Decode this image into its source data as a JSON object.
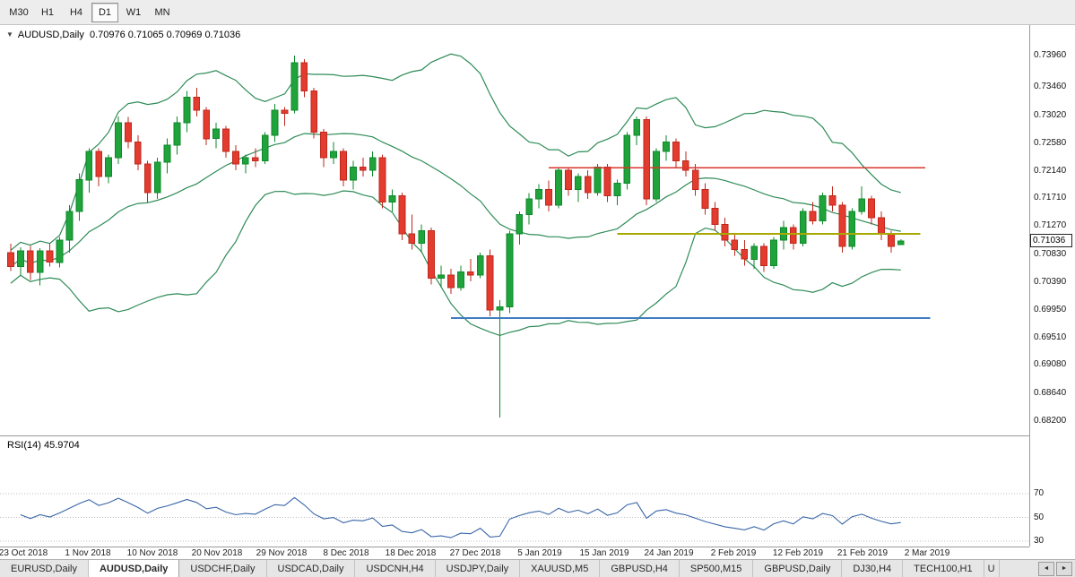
{
  "toolbar": {
    "timeframes": [
      {
        "label": "M30",
        "active": false
      },
      {
        "label": "H1",
        "active": false
      },
      {
        "label": "H4",
        "active": false
      },
      {
        "label": "D1",
        "active": true
      },
      {
        "label": "W1",
        "active": false
      },
      {
        "label": "MN",
        "active": false
      }
    ]
  },
  "chart": {
    "header_icon": "▼",
    "header_text": "AUDUSD,Daily  0.70976 0.71065 0.70969 0.71036",
    "current_price": "0.71036",
    "colors": {
      "up": "#1FA33A",
      "up_stroke": "#0C8A2B",
      "down": "#E33B2E",
      "down_stroke": "#BF271C",
      "bands": "#2E8B57",
      "rsi": "#3A66A8",
      "rsi_level": "#bdbdbd"
    }
  },
  "chart_data": {
    "type": "candlestick",
    "symbol": "AUDUSD",
    "timeframe": "Daily",
    "title": "AUDUSD,Daily",
    "ohlc_current": {
      "open": 0.70976,
      "high": 0.71065,
      "low": 0.70969,
      "close": 0.71036
    },
    "y_axis": {
      "p_max": 0.7444,
      "p_min": 0.6797,
      "ticks": [
        "0.73960",
        "0.73460",
        "0.73020",
        "0.72580",
        "0.72140",
        "0.71710",
        "0.71270",
        "0.70830",
        "0.70390",
        "0.69950",
        "0.69510",
        "0.69080",
        "0.68640",
        "0.68200"
      ]
    },
    "x_labels": [
      "23 Oct 2018",
      "1 Nov 2018",
      "10 Nov 2018",
      "20 Nov 2018",
      "29 Nov 2018",
      "8 Dec 2018",
      "18 Dec 2018",
      "27 Dec 2018",
      "5 Jan 2019",
      "15 Jan 2019",
      "24 Jan 2019",
      "2 Feb 2019",
      "12 Feb 2019",
      "21 Feb 2019",
      "2 Mar 2019"
    ],
    "candles": [
      [
        "2018.10.23",
        0.7085,
        0.7099,
        0.7056,
        0.7063
      ],
      [
        "2018.10.24",
        0.7063,
        0.7094,
        0.705,
        0.7088
      ],
      [
        "2018.10.25",
        0.7088,
        0.7096,
        0.7042,
        0.7054
      ],
      [
        "2018.10.26",
        0.7054,
        0.7092,
        0.70335,
        0.7088
      ],
      [
        "2018.10.29",
        0.7088,
        0.7099,
        0.7063,
        0.707
      ],
      [
        "2018.10.30",
        0.707,
        0.711,
        0.7062,
        0.7105
      ],
      [
        "2018.10.31",
        0.7105,
        0.716,
        0.7085,
        0.715
      ],
      [
        "2018.11.01",
        0.715,
        0.721,
        0.7135,
        0.72
      ],
      [
        "2018.11.02",
        0.72,
        0.725,
        0.718,
        0.7245
      ],
      [
        "2018.11.05",
        0.7245,
        0.725,
        0.719,
        0.7205
      ],
      [
        "2018.11.06",
        0.7205,
        0.724,
        0.7195,
        0.7235
      ],
      [
        "2018.11.07",
        0.7235,
        0.73,
        0.7225,
        0.729
      ],
      [
        "2018.11.08",
        0.729,
        0.7299,
        0.725,
        0.726
      ],
      [
        "2018.11.09",
        0.726,
        0.727,
        0.7215,
        0.7225
      ],
      [
        "2018.11.12",
        0.7225,
        0.723,
        0.7164,
        0.718
      ],
      [
        "2018.11.13",
        0.718,
        0.7235,
        0.717,
        0.7228
      ],
      [
        "2018.11.14",
        0.7228,
        0.7265,
        0.721,
        0.7255
      ],
      [
        "2018.11.15",
        0.7255,
        0.73,
        0.724,
        0.729
      ],
      [
        "2018.11.16",
        0.729,
        0.734,
        0.7275,
        0.733
      ],
      [
        "2018.11.19",
        0.733,
        0.7345,
        0.73,
        0.731
      ],
      [
        "2018.11.20",
        0.731,
        0.7315,
        0.7255,
        0.7265
      ],
      [
        "2018.11.21",
        0.7265,
        0.729,
        0.725,
        0.728
      ],
      [
        "2018.11.22",
        0.728,
        0.7285,
        0.7235,
        0.7245
      ],
      [
        "2018.11.23",
        0.7245,
        0.7255,
        0.7215,
        0.7225
      ],
      [
        "2018.11.26",
        0.7225,
        0.724,
        0.721,
        0.7235
      ],
      [
        "2018.11.27",
        0.7235,
        0.725,
        0.722,
        0.723
      ],
      [
        "2018.11.28",
        0.723,
        0.7275,
        0.7225,
        0.727
      ],
      [
        "2018.11.29",
        0.727,
        0.732,
        0.726,
        0.731
      ],
      [
        "2018.11.30",
        0.731,
        0.7315,
        0.7285,
        0.7305
      ],
      [
        "2018.12.03",
        0.731,
        0.7396,
        0.7305,
        0.7385
      ],
      [
        "2018.12.04",
        0.7385,
        0.739,
        0.733,
        0.734
      ],
      [
        "2018.12.05",
        0.734,
        0.7345,
        0.7265,
        0.7275
      ],
      [
        "2018.12.06",
        0.7275,
        0.728,
        0.722,
        0.7235
      ],
      [
        "2018.12.07",
        0.7235,
        0.726,
        0.7225,
        0.7245
      ],
      [
        "2018.12.10",
        0.7245,
        0.725,
        0.719,
        0.72
      ],
      [
        "2018.12.11",
        0.72,
        0.723,
        0.7185,
        0.722
      ],
      [
        "2018.12.12",
        0.722,
        0.7235,
        0.7205,
        0.7215
      ],
      [
        "2018.12.13",
        0.7215,
        0.7245,
        0.7205,
        0.7235
      ],
      [
        "2018.12.14",
        0.7235,
        0.724,
        0.7155,
        0.7165
      ],
      [
        "2018.12.17",
        0.7165,
        0.7185,
        0.715,
        0.7175
      ],
      [
        "2018.12.18",
        0.7175,
        0.718,
        0.7105,
        0.7115
      ],
      [
        "2018.12.19",
        0.7115,
        0.7145,
        0.709,
        0.71
      ],
      [
        "2018.12.20",
        0.71,
        0.713,
        0.7085,
        0.712
      ],
      [
        "2018.12.21",
        0.712,
        0.7125,
        0.7035,
        0.7045
      ],
      [
        "2018.12.24",
        0.7045,
        0.7065,
        0.703,
        0.705
      ],
      [
        "2018.12.26",
        0.705,
        0.706,
        0.702,
        0.703
      ],
      [
        "2018.12.27",
        0.703,
        0.7065,
        0.7025,
        0.7055
      ],
      [
        "2018.12.28",
        0.7055,
        0.7075,
        0.704,
        0.705
      ],
      [
        "2018.12.31",
        0.705,
        0.7085,
        0.7045,
        0.708
      ],
      [
        "2019.01.02",
        0.708,
        0.709,
        0.6985,
        0.6995
      ],
      [
        "2019.01.03",
        0.6995,
        0.701,
        0.6825,
        0.7
      ],
      [
        "2019.01.04",
        0.7,
        0.712,
        0.699,
        0.7115
      ],
      [
        "2019.01.07",
        0.7115,
        0.715,
        0.7098,
        0.7145
      ],
      [
        "2019.01.08",
        0.7145,
        0.7179,
        0.713,
        0.717
      ],
      [
        "2019.01.09",
        0.717,
        0.7193,
        0.7155,
        0.7185
      ],
      [
        "2019.01.10",
        0.7185,
        0.7199,
        0.715,
        0.716
      ],
      [
        "2019.01.11",
        0.716,
        0.722,
        0.7155,
        0.7215
      ],
      [
        "2019.01.14",
        0.7215,
        0.722,
        0.7175,
        0.7185
      ],
      [
        "2019.01.15",
        0.7185,
        0.721,
        0.7165,
        0.7205
      ],
      [
        "2019.01.16",
        0.7205,
        0.7215,
        0.717,
        0.718
      ],
      [
        "2019.01.17",
        0.718,
        0.7225,
        0.7175,
        0.722
      ],
      [
        "2019.01.18",
        0.722,
        0.7225,
        0.7165,
        0.7175
      ],
      [
        "2019.01.21",
        0.7175,
        0.72,
        0.716,
        0.7195
      ],
      [
        "2019.01.22",
        0.7195,
        0.7275,
        0.7185,
        0.727
      ],
      [
        "2019.01.23",
        0.727,
        0.73,
        0.7255,
        0.7295
      ],
      [
        "2019.01.24",
        0.7295,
        0.73,
        0.716,
        0.717
      ],
      [
        "2019.01.25",
        0.717,
        0.725,
        0.7165,
        0.7245
      ],
      [
        "2019.01.28",
        0.7245,
        0.727,
        0.723,
        0.726
      ],
      [
        "2019.01.29",
        0.726,
        0.7265,
        0.722,
        0.723
      ],
      [
        "2019.01.30",
        0.723,
        0.7245,
        0.7205,
        0.7215
      ],
      [
        "2019.01.31",
        0.7215,
        0.7225,
        0.7175,
        0.7185
      ],
      [
        "2019.02.01",
        0.7185,
        0.7195,
        0.7145,
        0.7155
      ],
      [
        "2019.02.04",
        0.7155,
        0.7165,
        0.712,
        0.713
      ],
      [
        "2019.02.05",
        0.713,
        0.714,
        0.7095,
        0.7105
      ],
      [
        "2019.02.06",
        0.7105,
        0.7115,
        0.708,
        0.709
      ],
      [
        "2019.02.07",
        0.709,
        0.7105,
        0.7065,
        0.7075
      ],
      [
        "2019.02.08",
        0.7075,
        0.71,
        0.706,
        0.7095
      ],
      [
        "2019.02.11",
        0.7095,
        0.71,
        0.7055,
        0.7065
      ],
      [
        "2019.02.12",
        0.7065,
        0.711,
        0.706,
        0.7105
      ],
      [
        "2019.02.13",
        0.7105,
        0.7135,
        0.709,
        0.7125
      ],
      [
        "2019.02.14",
        0.7125,
        0.713,
        0.709,
        0.71
      ],
      [
        "2019.02.15",
        0.71,
        0.7155,
        0.7095,
        0.715
      ],
      [
        "2019.02.18",
        0.715,
        0.7165,
        0.713,
        0.7135
      ],
      [
        "2019.02.19",
        0.7135,
        0.718,
        0.713,
        0.7175
      ],
      [
        "2019.02.20",
        0.7175,
        0.719,
        0.715,
        0.716
      ],
      [
        "2019.02.21",
        0.716,
        0.7165,
        0.7085,
        0.7095
      ],
      [
        "2019.02.22",
        0.7095,
        0.7155,
        0.709,
        0.715
      ],
      [
        "2019.02.25",
        0.715,
        0.719,
        0.7145,
        0.717
      ],
      [
        "2019.02.26",
        0.717,
        0.7175,
        0.713,
        0.714
      ],
      [
        "2019.02.27",
        0.714,
        0.715,
        0.7105,
        0.7115
      ],
      [
        "2019.02.28",
        0.7115,
        0.712,
        0.7085,
        0.7095
      ],
      [
        "2019.03.01",
        0.70976,
        0.71065,
        0.70969,
        0.71036
      ]
    ],
    "indicators": {
      "bollinger": {
        "period": 20,
        "deviation": 2
      },
      "rsi": {
        "header": "RSI(14) 45.9704",
        "period": 14,
        "value": 45.9704,
        "levels": [
          70,
          50,
          30
        ],
        "ticks": [
          "70",
          "50",
          "30"
        ]
      }
    },
    "hlines": [
      {
        "name": "resistance-line-red",
        "color": "#D9372E",
        "price": 0.7219,
        "from_bar": 55,
        "to_bar": 93.5,
        "width": 1.5
      },
      {
        "name": "pivot-line-olive",
        "color": "#A8A800",
        "price": 0.7115,
        "from_bar": 62,
        "to_bar": 93,
        "width": 2
      },
      {
        "name": "support-line-blue",
        "color": "#3E7CC1",
        "price": 0.6982,
        "from_bar": 45,
        "to_bar": 94,
        "width": 2
      }
    ]
  },
  "tabs": {
    "items": [
      {
        "label": "EURUSD,Daily"
      },
      {
        "label": "AUDUSD,Daily"
      },
      {
        "label": "USDCHF,Daily"
      },
      {
        "label": "USDCAD,Daily"
      },
      {
        "label": "USDCNH,H4"
      },
      {
        "label": "USDJPY,Daily"
      },
      {
        "label": "XAUUSD,M5"
      },
      {
        "label": "GBPUSD,H4"
      },
      {
        "label": "SP500,M15"
      },
      {
        "label": "GBPUSD,Daily"
      },
      {
        "label": "DJ30,H4"
      },
      {
        "label": "TECH100,H1"
      },
      {
        "label": "U"
      }
    ],
    "active_index": 1,
    "scroll_left": "◄",
    "scroll_right": "►"
  }
}
